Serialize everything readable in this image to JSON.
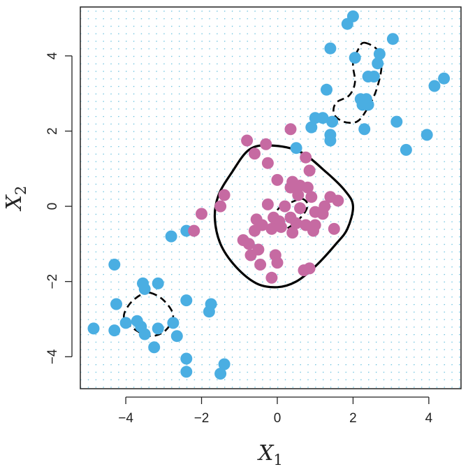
{
  "chart_data": {
    "type": "scatter",
    "title": "",
    "xlabel": "X1",
    "ylabel": "X2",
    "xlim": [
      -5.2,
      4.85
    ],
    "ylim": [
      -4.85,
      5.3
    ],
    "x_ticks": [
      -4,
      -2,
      0,
      2,
      4
    ],
    "y_ticks": [
      -4,
      -2,
      0,
      2,
      4
    ],
    "x_tick_labels": [
      "−4",
      "−2",
      "0",
      "2",
      "4"
    ],
    "y_tick_labels": [
      "−4",
      "−2",
      "0",
      "2",
      "4"
    ],
    "background_grid": {
      "style": "dotted",
      "color": "#5bbcdc",
      "spacing": 0.2
    },
    "colors": {
      "blue_class": "#4aaee2",
      "purple_class": "#c66aa2",
      "boundary": "#000000"
    },
    "series": [
      {
        "class": "blue",
        "points": [
          [
            2.0,
            5.05
          ],
          [
            1.85,
            4.85
          ],
          [
            1.4,
            4.2
          ],
          [
            3.05,
            4.45
          ],
          [
            2.05,
            3.95
          ],
          [
            2.7,
            4.05
          ],
          [
            2.65,
            3.8
          ],
          [
            2.4,
            3.45
          ],
          [
            2.55,
            3.45
          ],
          [
            1.3,
            3.1
          ],
          [
            2.2,
            2.85
          ],
          [
            2.35,
            2.85
          ],
          [
            2.4,
            2.7
          ],
          [
            2.25,
            2.7
          ],
          [
            1.0,
            2.35
          ],
          [
            1.2,
            2.35
          ],
          [
            1.45,
            2.25
          ],
          [
            0.9,
            2.1
          ],
          [
            1.4,
            1.9
          ],
          [
            2.3,
            2.05
          ],
          [
            1.4,
            1.75
          ],
          [
            3.15,
            2.25
          ],
          [
            3.4,
            1.5
          ],
          [
            4.4,
            3.4
          ],
          [
            4.15,
            3.2
          ],
          [
            3.95,
            1.9
          ],
          [
            0.5,
            1.55
          ],
          [
            -2.4,
            -0.65
          ],
          [
            -2.8,
            -0.8
          ],
          [
            -4.3,
            -1.55
          ],
          [
            -3.55,
            -2.05
          ],
          [
            -3.15,
            -2.05
          ],
          [
            -3.5,
            -2.2
          ],
          [
            -4.25,
            -2.6
          ],
          [
            -2.4,
            -2.5
          ],
          [
            -1.75,
            -2.6
          ],
          [
            -1.8,
            -2.8
          ],
          [
            -4.0,
            -3.1
          ],
          [
            -3.7,
            -3.05
          ],
          [
            -3.6,
            -3.2
          ],
          [
            -3.15,
            -3.25
          ],
          [
            -2.75,
            -3.1
          ],
          [
            -4.85,
            -3.25
          ],
          [
            -4.3,
            -3.3
          ],
          [
            -3.5,
            -3.4
          ],
          [
            -2.65,
            -3.45
          ],
          [
            -3.25,
            -3.75
          ],
          [
            -2.4,
            -4.05
          ],
          [
            -2.4,
            -4.4
          ],
          [
            -1.4,
            -4.2
          ],
          [
            -1.5,
            -4.45
          ]
        ]
      },
      {
        "class": "purple",
        "points": [
          [
            0.35,
            2.05
          ],
          [
            -0.8,
            1.75
          ],
          [
            -0.3,
            1.65
          ],
          [
            -0.6,
            1.4
          ],
          [
            0.75,
            1.3
          ],
          [
            -0.25,
            1.15
          ],
          [
            0.85,
            0.95
          ],
          [
            0.0,
            0.7
          ],
          [
            0.4,
            0.65
          ],
          [
            -2.0,
            -0.2
          ],
          [
            -1.4,
            0.3
          ],
          [
            -1.5,
            0.0
          ],
          [
            0.6,
            0.55
          ],
          [
            0.35,
            0.5
          ],
          [
            0.8,
            0.5
          ],
          [
            0.55,
            0.3
          ],
          [
            0.9,
            0.25
          ],
          [
            1.4,
            0.25
          ],
          [
            1.6,
            0.15
          ],
          [
            1.25,
            0.0
          ],
          [
            -0.25,
            0.05
          ],
          [
            0.2,
            0.0
          ],
          [
            0.6,
            -0.05
          ],
          [
            1.0,
            -0.15
          ],
          [
            1.2,
            -0.2
          ],
          [
            -0.1,
            -0.3
          ],
          [
            0.05,
            -0.4
          ],
          [
            0.35,
            -0.3
          ],
          [
            0.5,
            -0.45
          ],
          [
            0.75,
            -0.5
          ],
          [
            -0.55,
            -0.35
          ],
          [
            -0.4,
            -0.5
          ],
          [
            -0.15,
            -0.6
          ],
          [
            0.1,
            -0.55
          ],
          [
            0.4,
            -0.7
          ],
          [
            1.0,
            -0.5
          ],
          [
            -2.2,
            -0.65
          ],
          [
            -0.9,
            -0.9
          ],
          [
            -0.6,
            -0.65
          ],
          [
            -0.75,
            -1.0
          ],
          [
            -0.5,
            -1.15
          ],
          [
            -0.7,
            -1.3
          ],
          [
            -0.05,
            -1.3
          ],
          [
            0.95,
            -0.65
          ],
          [
            1.5,
            -0.6
          ],
          [
            -0.45,
            -1.55
          ],
          [
            0.0,
            -1.5
          ],
          [
            0.7,
            -1.7
          ],
          [
            0.85,
            -1.65
          ],
          [
            -0.15,
            -1.9
          ]
        ]
      }
    ],
    "boundaries": [
      {
        "style": "solid",
        "points": [
          [
            -0.2,
            1.62
          ],
          [
            0.6,
            1.45
          ],
          [
            1.3,
            0.9
          ],
          [
            1.8,
            0.4
          ],
          [
            2.0,
            0.0
          ],
          [
            1.85,
            -0.6
          ],
          [
            1.55,
            -1.0
          ],
          [
            1.0,
            -1.6
          ],
          [
            0.5,
            -2.0
          ],
          [
            0.0,
            -2.15
          ],
          [
            -0.55,
            -2.05
          ],
          [
            -1.1,
            -1.6
          ],
          [
            -1.5,
            -1.0
          ],
          [
            -1.65,
            -0.3
          ],
          [
            -1.55,
            0.3
          ],
          [
            -1.2,
            0.9
          ],
          [
            -0.75,
            1.5
          ]
        ]
      },
      {
        "style": "dashed",
        "points": [
          [
            0.1,
            0.0
          ],
          [
            0.35,
            0.1
          ],
          [
            0.65,
            0.2
          ],
          [
            0.8,
            0.05
          ],
          [
            0.7,
            -0.2
          ],
          [
            0.45,
            -0.45
          ],
          [
            0.2,
            -0.6
          ],
          [
            0.0,
            -0.45
          ],
          [
            -0.05,
            -0.2
          ]
        ]
      },
      {
        "style": "dashed",
        "points": [
          [
            2.3,
            4.35
          ],
          [
            2.65,
            4.15
          ],
          [
            2.75,
            3.7
          ],
          [
            2.6,
            3.05
          ],
          [
            2.35,
            2.55
          ],
          [
            2.1,
            2.25
          ],
          [
            1.75,
            2.25
          ],
          [
            1.5,
            2.45
          ],
          [
            1.55,
            2.75
          ],
          [
            1.9,
            2.95
          ],
          [
            2.05,
            3.3
          ],
          [
            2.0,
            3.8
          ],
          [
            2.15,
            4.2
          ]
        ]
      },
      {
        "style": "dashed",
        "points": [
          [
            -3.35,
            -2.3
          ],
          [
            -3.0,
            -2.5
          ],
          [
            -2.75,
            -2.9
          ],
          [
            -2.95,
            -3.3
          ],
          [
            -3.35,
            -3.45
          ],
          [
            -3.8,
            -3.25
          ],
          [
            -4.05,
            -2.95
          ],
          [
            -3.9,
            -2.6
          ],
          [
            -3.6,
            -2.35
          ]
        ]
      }
    ]
  }
}
